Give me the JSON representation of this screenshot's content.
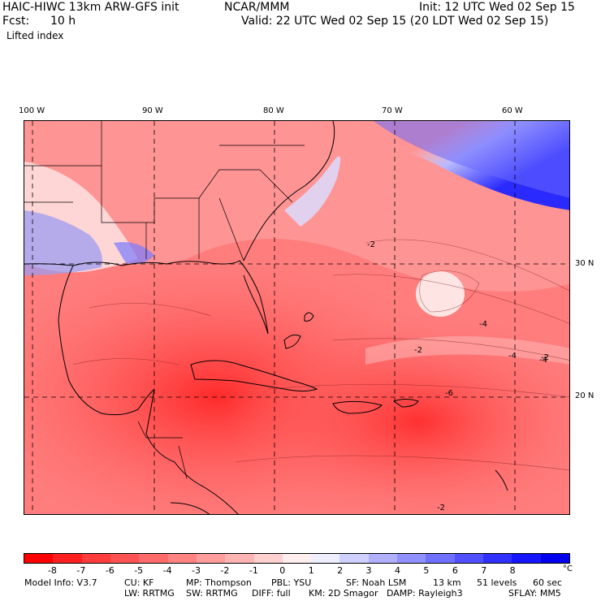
{
  "header": {
    "model_title": "HAIC-HIWC 13km ARW-GFS init",
    "org": "NCAR/MMM",
    "init": "Init: 12 UTC Wed 02 Sep 15",
    "fcst_label": "Fcst:",
    "fcst_value": "10 h",
    "valid": "Valid: 22 UTC Wed 02 Sep 15 (20 LDT Wed 02 Sep 15)",
    "field": "Lifted index"
  },
  "map": {
    "lon_labels": [
      "100 W",
      "90 W",
      "80 W",
      "70 W",
      "60 W"
    ],
    "lat_labels": [
      "30 N",
      "20 N"
    ],
    "contour_labels": [
      "-2",
      "-4",
      "-6",
      "-2",
      "-4",
      "-2",
      "-4",
      "-2"
    ]
  },
  "colorbar": {
    "unit": "°C",
    "tick_labels": [
      "-8",
      "-7",
      "-6",
      "-5",
      "-4",
      "-3",
      "-2",
      "-1",
      "0",
      "1",
      "2",
      "3",
      "4",
      "5",
      "6",
      "7",
      "8"
    ],
    "colors": [
      "#ff0000",
      "#ff2020",
      "#ff3b3b",
      "#ff5252",
      "#ff6b6b",
      "#ff8383",
      "#ff9c9c",
      "#ffb4b4",
      "#ffd0d0",
      "#ffeeee",
      "#eeeeff",
      "#d0d0ff",
      "#b0b0ff",
      "#9090ff",
      "#7070ff",
      "#5050ff",
      "#3030ff",
      "#1515ff",
      "#0000ee"
    ]
  },
  "footer": {
    "line1": [
      "Model Info: V3.7",
      "CU: KF",
      "MP: Thompson",
      "PBL: YSU",
      "SF: Noah LSM",
      "13 km",
      "51 levels",
      "60 sec"
    ],
    "line2": [
      "LW: RRTMG",
      "SW: RRTMG",
      "DIFF: full",
      "KM: 2D Smagor",
      "DAMP: Rayleigh3",
      "SFLAY: MM5"
    ]
  }
}
